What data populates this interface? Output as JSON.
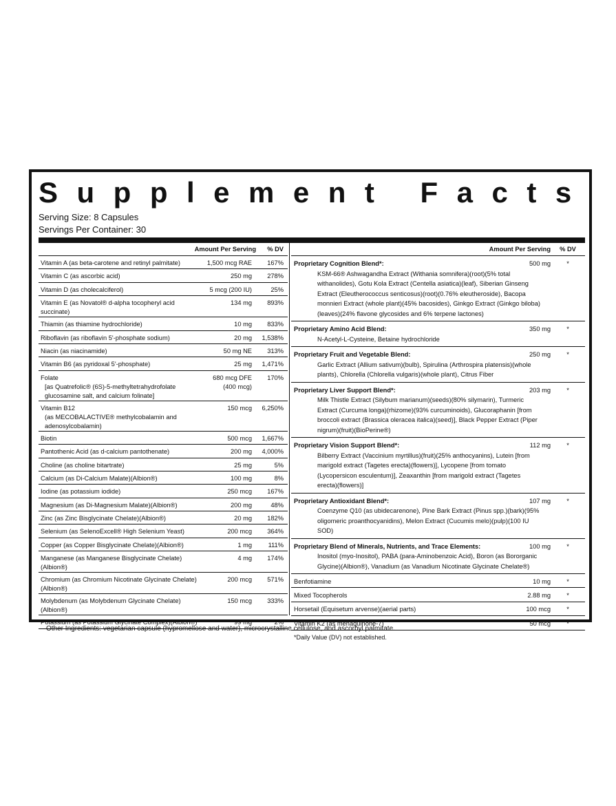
{
  "title": "Supplement Facts",
  "serving_size": "Serving Size: 8 Capsules",
  "servings_per_container": "Servings Per Container: 30",
  "left": {
    "header": [
      "Amount Per Serving",
      "% DV"
    ],
    "rows": [
      {
        "name": "Vitamin A (as beta-carotene and retinyl palmitate)",
        "amount": "1,500 mcg RAE",
        "dv": "167%"
      },
      {
        "name": "Vitamin C (as ascorbic acid)",
        "amount": "250 mg",
        "dv": "278%"
      },
      {
        "name": "Vitamin D (as cholecalciferol)",
        "amount": "5 mcg (200 IU)",
        "dv": "25%"
      },
      {
        "name": "Vitamin E (as Novatol® d-alpha tocopheryl acid succinate)",
        "amount": "134 mg",
        "dv": "893%"
      },
      {
        "name": "Thiamin (as thiamine hydrochloride)",
        "amount": "10 mg",
        "dv": "833%"
      },
      {
        "name": "Riboflavin (as riboflavin 5'-phosphate sodium)",
        "amount": "20 mg",
        "dv": "1,538%"
      },
      {
        "name": "Niacin (as niacinamide)",
        "amount": "50 mg NE",
        "dv": "313%"
      },
      {
        "name": "Vitamin B6 (as pyridoxal 5'-phosphate)",
        "amount": "25 mg",
        "dv": "1,471%"
      },
      {
        "name": "Folate",
        "detail": "[as Quatrefolic® (6S)-5-methyltetrahydrofolate glucosamine salt, and calcium folinate]",
        "amount": "680 mcg DFE (400 mcg)",
        "dv": "170%"
      },
      {
        "name": "Vitamin B12",
        "detail": "(as MECOBALACTIVE® methylcobalamin and adenosylcobalamin)",
        "amount": "150 mcg",
        "dv": "6,250%"
      },
      {
        "name": "Biotin",
        "amount": "500 mcg",
        "dv": "1,667%"
      },
      {
        "name": "Pantothenic Acid (as d-calcium pantothenate)",
        "amount": "200 mg",
        "dv": "4,000%"
      },
      {
        "name": "Choline (as choline bitartrate)",
        "amount": "25 mg",
        "dv": "5%"
      },
      {
        "name": "Calcium (as Di-Calcium Malate)(Albion®)",
        "amount": "100 mg",
        "dv": "8%"
      },
      {
        "name": "Iodine (as potassium iodide)",
        "amount": "250 mcg",
        "dv": "167%"
      },
      {
        "name": "Magnesium (as Di-Magnesium Malate)(Albion®)",
        "amount": "200 mg",
        "dv": "48%"
      },
      {
        "name": "Zinc (as Zinc Bisglycinate Chelate)(Albion®)",
        "amount": "20 mg",
        "dv": "182%"
      },
      {
        "name": "Selenium (as SelenoExcell® High Selenium Yeast)",
        "amount": "200 mcg",
        "dv": "364%"
      },
      {
        "name": "Copper (as Copper Bisglycinate Chelate)(Albion®)",
        "amount": "1 mg",
        "dv": "111%"
      },
      {
        "name": "Manganese (as Manganese Bisglycinate Chelate)(Albion®)",
        "amount": "4 mg",
        "dv": "174%"
      },
      {
        "name": "Chromium (as Chromium Nicotinate Glycinate Chelate)(Albion®)",
        "amount": "200 mcg",
        "dv": "571%"
      },
      {
        "name": "Molybdenum (as Molybdenum Glycinate Chelate)(Albion®)",
        "amount": "150 mcg",
        "dv": "333%"
      },
      {
        "name": "Potassium (as Potassium Glycinate Complex)(Albion®)",
        "amount": "99 mg",
        "dv": "2%"
      }
    ]
  },
  "right": {
    "header": [
      "Amount Per Serving",
      "% DV"
    ],
    "blends": [
      {
        "name": "Proprietary Cognition Blend*:",
        "amount": "500 mg",
        "dv": "*",
        "description": "KSM-66® Ashwagandha Extract (Withania somnifera)(root)(5% total withanolides), Gotu Kola Extract (Centella asiatica)(leaf), Siberian Ginseng Extract (Eleutherococcus senticosus)(root)(0.76% eleutheroside), Bacopa monnieri Extract (whole plant)(45% bacosides), Ginkgo Extract (Ginkgo biloba)(leaves)(24% flavone glycosides and 6% terpene lactones)"
      },
      {
        "name": "Proprietary Amino Acid Blend:",
        "amount": "350 mg",
        "dv": "*",
        "description": "N-Acetyl-L-Cysteine, Betaine hydrochloride"
      },
      {
        "name": "Proprietary Fruit and Vegetable Blend:",
        "amount": "250 mg",
        "dv": "*",
        "description": "Garlic Extract (Allium sativum)(bulb), Spirulina (Arthrospira platensis)(whole plants), Chlorella (Chlorella vulgaris)(whole plant), Citrus Fiber"
      },
      {
        "name": "Proprietary Liver Support Blend*:",
        "amount": "203 mg",
        "dv": "*",
        "description": "Milk Thistle Extract (Silybum marianum)(seeds)(80% silymarin), Turmeric Extract (Curcuma longa)(rhizome)(93% curcuminoids), Glucoraphanin [from broccoli extract (Brassica oleracea italica)(seed)], Black Pepper Extract (Piper nigrum)(fruit)(BioPerine®)"
      },
      {
        "name": "Proprietary Vision Support Blend*:",
        "amount": "112 mg",
        "dv": "*",
        "description": "Bilberry Extract (Vaccinium myrtillus)(fruit)(25% anthocyanins), Lutein [from marigold extract (Tagetes erecta)(flowers)], Lycopene [from tomato (Lycopersicon esculentum)], Zeaxanthin [from marigold extract (Tagetes erecta)(flowers)]"
      },
      {
        "name": "Proprietary Antioxidant Blend*:",
        "amount": "107 mg",
        "dv": "*",
        "description": "Coenzyme Q10 (as ubidecarenone), Pine Bark Extract (Pinus spp.)(bark)(95% oligomeric proanthocyanidins), Melon Extract (Cucumis melo)(pulp)(100 IU SOD)"
      },
      {
        "name": "Proprietary Blend of Minerals, Nutrients, and Trace Elements:",
        "amount": "100 mg",
        "dv": "*",
        "description": "Inositol (myo-Inositol), PABA (para-Aminobenzoic Acid), Boron (as Bororganic Glycine)(Albion®), Vanadium (as Vanadium Nicotinate Glycinate Chelate®)"
      }
    ],
    "rows": [
      {
        "name": "Benfotiamine",
        "amount": "10 mg",
        "dv": "*"
      },
      {
        "name": "Mixed Tocopherols",
        "amount": "2.88 mg",
        "dv": "*"
      },
      {
        "name": "Horsetail (Equisetum arvense)(aerial parts)",
        "amount": "100 mcg",
        "dv": "*"
      },
      {
        "name": "Vitamin K2 (as menaquinone-7)",
        "amount": "50 mcg",
        "dv": "*"
      }
    ],
    "footnote": "*Daily Value (DV) not established."
  },
  "other_ingredients": "Other Ingredients: vegetarian capsule (hypromellose and water), microcrystalline cellulose, and ascorbyl palmitate."
}
